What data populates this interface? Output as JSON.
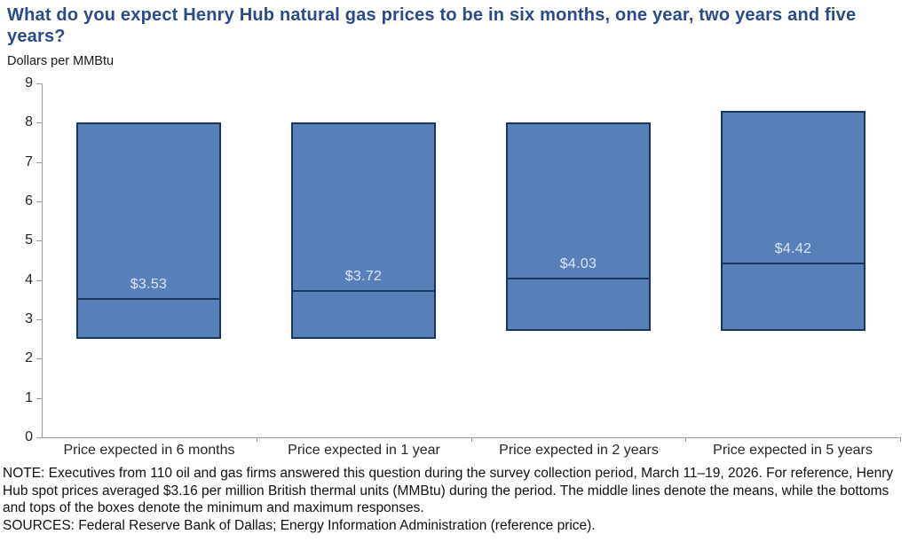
{
  "page": {
    "title": "What do you expect Henry Hub natural gas prices to be in six months, one year, two years and five years?",
    "subtitle": "Dollars per MMBtu",
    "note": "NOTE: Executives from 110 oil and gas firms answered this question during the survey collection period, March 11–19, 2026. For reference, Henry Hub spot prices averaged $3.16 per million British thermal units (MMBtu) during the period. The middle lines denote the means, while the bottoms and tops of the boxes denote the minimum and maximum responses.",
    "sources": "SOURCES: Federal Reserve Bank of Dallas; Energy Information Administration (reference price)."
  },
  "colors": {
    "title_text": "#2B4A8C",
    "bar_fill": "#5880B8",
    "bar_border": "#17375E",
    "mean_line": "#17375E",
    "mean_label_text": "#DCE5F2",
    "axis": "#999999",
    "tick_text": "#262626"
  },
  "chart_data": {
    "type": "bar",
    "subtype": "floating-range-with-mean-line",
    "title": "What do you expect Henry Hub natural gas prices to be in six months, one year, two years and five years?",
    "ylabel": "Dollars per MMBtu",
    "xlabel": "",
    "categories": [
      "Price expected in 6 months",
      "Price expected in 1 year",
      "Price expected in 2 years",
      "Price expected in 5 years"
    ],
    "series": [
      {
        "name": "minimum response",
        "values": [
          2.5,
          2.5,
          2.7,
          2.7
        ]
      },
      {
        "name": "maximum response",
        "values": [
          8.0,
          8.0,
          8.0,
          8.3
        ]
      },
      {
        "name": "mean",
        "values": [
          3.53,
          3.72,
          4.03,
          4.42
        ]
      }
    ],
    "mean_labels": [
      "$3.53",
      "$3.72",
      "$4.03",
      "$4.42"
    ],
    "ylim": [
      0,
      9
    ],
    "yticks": [
      0,
      1,
      2,
      3,
      4,
      5,
      6,
      7,
      8,
      9
    ],
    "grid": false,
    "legend": false
  }
}
